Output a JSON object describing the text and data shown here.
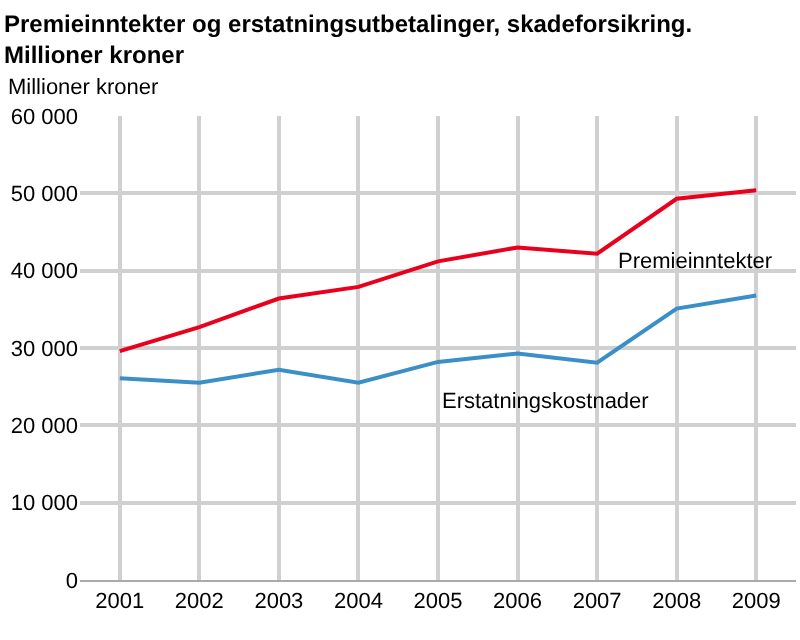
{
  "chart_data": {
    "type": "line",
    "title": "Premieinntekter og erstatningsutbetalinger, skadeforsikring. Millioner kroner",
    "ylabel": "Millioner kroner",
    "x": [
      2001,
      2002,
      2003,
      2004,
      2005,
      2006,
      2007,
      2008,
      2009
    ],
    "series": [
      {
        "name": "Premieinntekter",
        "color": "#e8001c",
        "values": [
          29600,
          32700,
          36400,
          37900,
          41200,
          43000,
          42200,
          49300,
          50400
        ]
      },
      {
        "name": "Erstatningskostnader",
        "color": "#3b8fc8",
        "values": [
          26100,
          25500,
          27200,
          25500,
          28200,
          29300,
          28100,
          35100,
          36800
        ]
      }
    ],
    "xlim": [
      2000.5,
      2009.5
    ],
    "xticks": [
      2001,
      2002,
      2003,
      2004,
      2005,
      2006,
      2007,
      2008,
      2009
    ],
    "ylim": [
      0,
      60000
    ],
    "yticks": [
      {
        "value": 0,
        "label": "0"
      },
      {
        "value": 10000,
        "label": "10 000"
      },
      {
        "value": 20000,
        "label": "20 000"
      },
      {
        "value": 30000,
        "label": "30 000"
      },
      {
        "value": 40000,
        "label": "40 000"
      },
      {
        "value": 50000,
        "label": "50 000"
      },
      {
        "value": 60000,
        "label": "60 000"
      }
    ],
    "grid": true,
    "legend": false,
    "marker": "none",
    "line_style": "solid"
  }
}
